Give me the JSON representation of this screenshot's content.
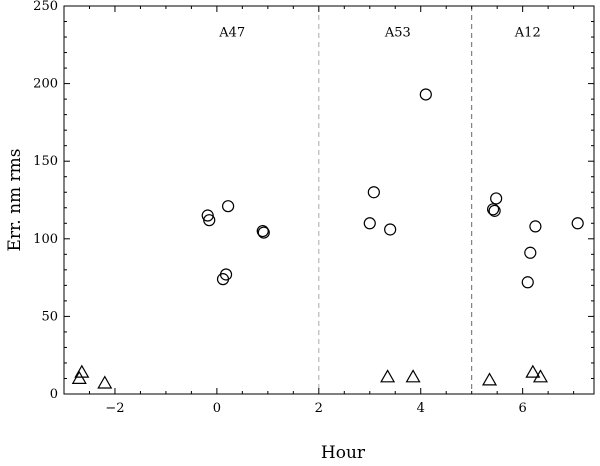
{
  "chart_data": {
    "type": "scatter",
    "xlabel": "Hour",
    "ylabel": "Err. nm rms",
    "xlim": [
      -3,
      7.4
    ],
    "ylim": [
      0,
      250
    ],
    "x_ticks": [
      -2,
      0,
      2,
      4,
      6
    ],
    "y_ticks": [
      0,
      50,
      100,
      150,
      200,
      250
    ],
    "x_tick_labels": [
      "−2",
      "0",
      "2",
      "4",
      "6"
    ],
    "y_tick_labels": [
      "0",
      "50",
      "100",
      "150",
      "200",
      "250"
    ],
    "grid": false,
    "dividers": [
      2,
      5
    ],
    "annotations": [
      {
        "text": "A47",
        "x": 0.3,
        "y": 233
      },
      {
        "text": "A53",
        "x": 3.55,
        "y": 233
      },
      {
        "text": "A12",
        "x": 6.1,
        "y": 233
      }
    ],
    "series": [
      {
        "marker": "circle",
        "points": [
          {
            "x": -0.18,
            "y": 115
          },
          {
            "x": -0.15,
            "y": 112
          },
          {
            "x": 0.22,
            "y": 121
          },
          {
            "x": 0.12,
            "y": 74
          },
          {
            "x": 0.18,
            "y": 77
          },
          {
            "x": 0.9,
            "y": 105
          },
          {
            "x": 0.92,
            "y": 104
          },
          {
            "x": 3.0,
            "y": 110
          },
          {
            "x": 3.08,
            "y": 130
          },
          {
            "x": 3.4,
            "y": 106
          },
          {
            "x": 4.1,
            "y": 193
          },
          {
            "x": 5.42,
            "y": 119
          },
          {
            "x": 5.45,
            "y": 118
          },
          {
            "x": 5.48,
            "y": 126
          },
          {
            "x": 6.25,
            "y": 108
          },
          {
            "x": 6.15,
            "y": 91
          },
          {
            "x": 6.1,
            "y": 72
          },
          {
            "x": 7.08,
            "y": 110
          }
        ]
      },
      {
        "marker": "triangle",
        "points": [
          {
            "x": -2.7,
            "y": 10
          },
          {
            "x": -2.65,
            "y": 14
          },
          {
            "x": -2.2,
            "y": 7
          },
          {
            "x": 3.35,
            "y": 11
          },
          {
            "x": 3.85,
            "y": 11
          },
          {
            "x": 5.35,
            "y": 9
          },
          {
            "x": 6.2,
            "y": 14
          },
          {
            "x": 6.35,
            "y": 11
          }
        ]
      }
    ]
  }
}
